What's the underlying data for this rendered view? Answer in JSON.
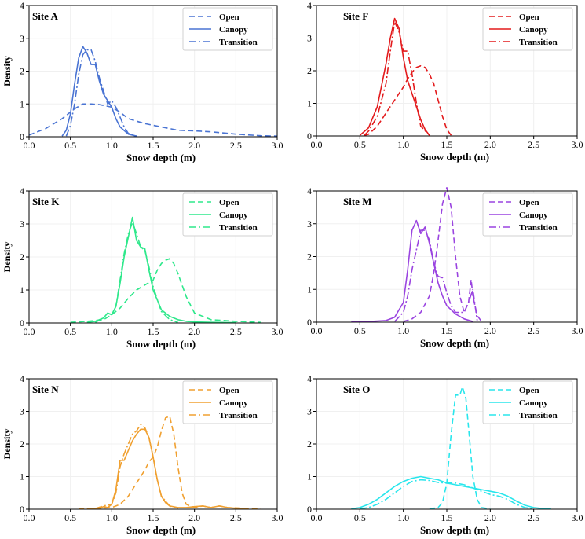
{
  "chart_data": [
    {
      "type": "line",
      "title": "Site A",
      "xlabel": "Snow depth (m)",
      "ylabel": "Density",
      "xlim": [
        0,
        3
      ],
      "ylim": [
        0,
        4
      ],
      "xticks": [
        "0.0",
        "0.5",
        "1.0",
        "1.5",
        "2.0",
        "2.5",
        "3.0"
      ],
      "yticks": [
        "0",
        "1",
        "2",
        "3",
        "4"
      ],
      "legend_position": "top-right",
      "color": "#4a74d3",
      "series": [
        {
          "name": "Open",
          "style": "dashed",
          "x": [
            0.0,
            0.2,
            0.4,
            0.55,
            0.65,
            0.75,
            0.85,
            1.0,
            1.1,
            1.2,
            1.4,
            1.6,
            1.8,
            2.0,
            2.2,
            2.5,
            2.8,
            3.0
          ],
          "y": [
            0.05,
            0.25,
            0.55,
            0.85,
            1.0,
            1.0,
            0.98,
            0.9,
            0.75,
            0.55,
            0.4,
            0.3,
            0.2,
            0.18,
            0.15,
            0.08,
            0.03,
            0.02
          ]
        },
        {
          "name": "Canopy",
          "style": "solid",
          "x": [
            0.4,
            0.45,
            0.5,
            0.55,
            0.6,
            0.65,
            0.7,
            0.75,
            0.8,
            0.85,
            0.9,
            0.95,
            1.0,
            1.05,
            1.1,
            1.2,
            1.3
          ],
          "y": [
            0.02,
            0.2,
            0.7,
            1.6,
            2.4,
            2.75,
            2.55,
            2.2,
            2.2,
            1.7,
            1.3,
            1.1,
            0.9,
            0.55,
            0.3,
            0.08,
            0.02
          ]
        },
        {
          "name": "Transition",
          "style": "dashdot",
          "x": [
            0.45,
            0.5,
            0.55,
            0.6,
            0.65,
            0.7,
            0.75,
            0.8,
            0.85,
            0.9,
            0.95,
            1.0,
            1.05,
            1.1,
            1.15,
            1.2,
            1.3
          ],
          "y": [
            0.02,
            0.35,
            1.0,
            1.9,
            2.5,
            2.65,
            2.65,
            2.3,
            1.8,
            1.4,
            1.0,
            1.1,
            0.9,
            0.6,
            0.3,
            0.1,
            0.02
          ]
        }
      ]
    },
    {
      "type": "line",
      "title": "Site F",
      "xlabel": "Snow depth (m)",
      "ylabel": "",
      "xlim": [
        0,
        3
      ],
      "ylim": [
        0,
        4
      ],
      "xticks": [
        "0.0",
        "0.5",
        "1.0",
        "1.5",
        "2.0",
        "2.5",
        "3.0"
      ],
      "yticks": [
        "0",
        "1",
        "2",
        "3",
        "4"
      ],
      "legend_position": "top-right",
      "color": "#e31a1c",
      "series": [
        {
          "name": "Open",
          "style": "dashed",
          "x": [
            0.55,
            0.6,
            0.7,
            0.8,
            0.9,
            1.0,
            1.05,
            1.1,
            1.15,
            1.2,
            1.25,
            1.3,
            1.35,
            1.4,
            1.45,
            1.5,
            1.55
          ],
          "y": [
            0.02,
            0.05,
            0.3,
            0.7,
            1.1,
            1.5,
            1.75,
            1.95,
            2.1,
            2.15,
            2.1,
            1.9,
            1.6,
            1.1,
            0.6,
            0.2,
            0.02
          ]
        },
        {
          "name": "Canopy",
          "style": "solid",
          "x": [
            0.5,
            0.6,
            0.7,
            0.8,
            0.85,
            0.9,
            0.95,
            1.0,
            1.05,
            1.1,
            1.15,
            1.2,
            1.25,
            1.3
          ],
          "y": [
            0.02,
            0.25,
            0.9,
            2.2,
            3.0,
            3.6,
            3.3,
            2.4,
            1.7,
            1.3,
            0.9,
            0.5,
            0.2,
            0.02
          ]
        },
        {
          "name": "Transition",
          "style": "dashdot",
          "x": [
            0.55,
            0.6,
            0.7,
            0.8,
            0.85,
            0.9,
            0.95,
            1.0,
            1.05,
            1.1,
            1.15,
            1.2,
            1.3
          ],
          "y": [
            0.02,
            0.15,
            0.6,
            1.6,
            2.6,
            3.5,
            3.2,
            2.6,
            2.6,
            1.9,
            1.0,
            0.3,
            0.02
          ]
        }
      ]
    },
    {
      "type": "line",
      "title": "Site K",
      "xlabel": "Snow depth (m)",
      "ylabel": "Density",
      "xlim": [
        0,
        3
      ],
      "ylim": [
        0,
        4
      ],
      "xticks": [
        "0.0",
        "0.5",
        "1.0",
        "1.5",
        "2.0",
        "2.5",
        "3.0"
      ],
      "yticks": [
        "0",
        "1",
        "2",
        "3",
        "4"
      ],
      "legend_position": "top-right",
      "color": "#2ee88b",
      "series": [
        {
          "name": "Open",
          "style": "dashed",
          "x": [
            0.5,
            0.7,
            0.9,
            1.0,
            1.1,
            1.2,
            1.3,
            1.4,
            1.5,
            1.55,
            1.6,
            1.65,
            1.7,
            1.75,
            1.8,
            1.9,
            2.0,
            2.2,
            2.5,
            2.8
          ],
          "y": [
            0.02,
            0.05,
            0.1,
            0.25,
            0.45,
            0.75,
            1.0,
            1.15,
            1.3,
            1.6,
            1.8,
            1.9,
            1.95,
            1.8,
            1.5,
            0.8,
            0.3,
            0.1,
            0.05,
            0.02
          ]
        },
        {
          "name": "Canopy",
          "style": "solid",
          "x": [
            0.7,
            0.8,
            0.9,
            0.95,
            1.0,
            1.05,
            1.1,
            1.15,
            1.2,
            1.25,
            1.3,
            1.35,
            1.4,
            1.45,
            1.5,
            1.6,
            1.7,
            1.8,
            1.9,
            2.0,
            2.2,
            2.5
          ],
          "y": [
            0.02,
            0.05,
            0.15,
            0.3,
            0.25,
            0.5,
            1.2,
            2.0,
            2.6,
            3.2,
            2.5,
            2.3,
            2.25,
            1.6,
            1.0,
            0.4,
            0.2,
            0.1,
            0.05,
            0.03,
            0.02,
            0.01
          ]
        },
        {
          "name": "Transition",
          "style": "dashdot",
          "x": [
            0.8,
            0.9,
            0.95,
            1.0,
            1.05,
            1.1,
            1.15,
            1.2,
            1.25,
            1.3,
            1.35,
            1.4,
            1.45,
            1.5,
            1.6,
            1.7,
            1.8
          ],
          "y": [
            0.02,
            0.15,
            0.3,
            0.25,
            0.5,
            1.3,
            2.1,
            2.7,
            3.05,
            2.7,
            2.3,
            2.2,
            1.7,
            1.1,
            0.35,
            0.1,
            0.02
          ]
        }
      ]
    },
    {
      "type": "line",
      "title": "Site M",
      "xlabel": "Snow depth (m)",
      "ylabel": "",
      "xlim": [
        0,
        3
      ],
      "ylim": [
        0,
        4
      ],
      "xticks": [
        "0.0",
        "0.5",
        "1.0",
        "1.5",
        "2.0",
        "2.5",
        "3.0"
      ],
      "yticks": [
        "0",
        "1",
        "2",
        "3",
        "4"
      ],
      "legend_position": "top-right",
      "color": "#9a44e0",
      "series": [
        {
          "name": "Open",
          "style": "dashed",
          "x": [
            1.0,
            1.1,
            1.2,
            1.3,
            1.35,
            1.4,
            1.45,
            1.5,
            1.55,
            1.6,
            1.65,
            1.7,
            1.75,
            1.78,
            1.8,
            1.85,
            1.9
          ],
          "y": [
            0.02,
            0.1,
            0.3,
            0.8,
            1.5,
            2.5,
            3.6,
            4.1,
            3.5,
            2.0,
            0.8,
            0.3,
            0.6,
            1.3,
            0.8,
            0.2,
            0.02
          ]
        },
        {
          "name": "Canopy",
          "style": "solid",
          "x": [
            0.4,
            0.6,
            0.8,
            0.9,
            1.0,
            1.05,
            1.1,
            1.15,
            1.2,
            1.25,
            1.3,
            1.35,
            1.4,
            1.45,
            1.5,
            1.6,
            1.7,
            1.8
          ],
          "y": [
            0.01,
            0.02,
            0.05,
            0.15,
            0.6,
            1.6,
            2.8,
            3.1,
            2.7,
            2.9,
            2.4,
            1.8,
            1.2,
            0.8,
            0.5,
            0.25,
            0.1,
            0.02
          ]
        },
        {
          "name": "Transition",
          "style": "dashdot",
          "x": [
            0.9,
            1.0,
            1.05,
            1.1,
            1.15,
            1.2,
            1.25,
            1.3,
            1.35,
            1.4,
            1.45,
            1.5,
            1.55,
            1.6,
            1.7,
            1.75,
            1.8,
            1.85
          ],
          "y": [
            0.02,
            0.3,
            0.8,
            1.6,
            2.2,
            2.8,
            2.8,
            2.5,
            1.8,
            1.4,
            1.35,
            0.9,
            0.5,
            0.3,
            0.3,
            0.6,
            1.0,
            0.05
          ]
        }
      ]
    },
    {
      "type": "line",
      "title": "Site N",
      "xlabel": "Snow depth (m)",
      "ylabel": "Density",
      "xlim": [
        0,
        3
      ],
      "ylim": [
        0,
        4
      ],
      "xticks": [
        "0.0",
        "0.5",
        "1.0",
        "1.5",
        "2.0",
        "2.5",
        "3.0"
      ],
      "yticks": [
        "0",
        "1",
        "2",
        "3",
        "4"
      ],
      "legend_position": "top-right",
      "color": "#f0a030",
      "series": [
        {
          "name": "Open",
          "style": "dashed",
          "x": [
            0.6,
            0.8,
            1.0,
            1.1,
            1.2,
            1.3,
            1.4,
            1.45,
            1.5,
            1.55,
            1.6,
            1.65,
            1.7,
            1.75,
            1.8,
            1.85,
            1.9,
            2.0,
            2.1,
            2.2,
            2.3,
            2.4,
            2.6,
            2.8
          ],
          "y": [
            0.01,
            0.02,
            0.05,
            0.15,
            0.4,
            0.8,
            1.2,
            1.45,
            1.6,
            1.9,
            2.4,
            2.8,
            2.85,
            2.3,
            1.3,
            0.5,
            0.15,
            0.05,
            0.1,
            0.05,
            0.1,
            0.05,
            0.03,
            0.01
          ]
        },
        {
          "name": "Canopy",
          "style": "solid",
          "x": [
            0.7,
            0.85,
            0.9,
            0.95,
            1.0,
            1.05,
            1.1,
            1.15,
            1.2,
            1.25,
            1.3,
            1.35,
            1.4,
            1.45,
            1.5,
            1.55,
            1.6,
            1.65,
            1.7,
            1.8,
            1.9,
            2.0,
            2.1,
            2.2,
            2.3,
            2.4,
            2.6
          ],
          "y": [
            0.01,
            0.03,
            0.08,
            0.05,
            0.15,
            0.6,
            1.5,
            1.5,
            1.8,
            2.1,
            2.3,
            2.45,
            2.45,
            2.2,
            1.6,
            0.9,
            0.4,
            0.2,
            0.1,
            0.05,
            0.05,
            0.08,
            0.1,
            0.05,
            0.1,
            0.05,
            0.01
          ]
        },
        {
          "name": "Transition",
          "style": "dashdot",
          "x": [
            0.8,
            0.9,
            1.0,
            1.05,
            1.1,
            1.15,
            1.2,
            1.25,
            1.3,
            1.35,
            1.4,
            1.45,
            1.5,
            1.55,
            1.6,
            1.7,
            1.8
          ],
          "y": [
            0.02,
            0.1,
            0.15,
            0.5,
            1.3,
            1.7,
            2.0,
            2.3,
            2.4,
            2.6,
            2.5,
            2.2,
            1.6,
            0.9,
            0.4,
            0.1,
            0.02
          ]
        }
      ]
    },
    {
      "type": "line",
      "title": "Site O",
      "xlabel": "Snow depth (m)",
      "ylabel": "",
      "xlim": [
        0,
        3
      ],
      "ylim": [
        0,
        4
      ],
      "xticks": [
        "0.0",
        "0.5",
        "1.0",
        "1.5",
        "2.0",
        "2.5",
        "3.0"
      ],
      "yticks": [
        "0",
        "1",
        "2",
        "3",
        "4"
      ],
      "legend_position": "top-right",
      "color": "#28e6ec",
      "series": [
        {
          "name": "Open",
          "style": "dashed",
          "x": [
            1.3,
            1.4,
            1.45,
            1.5,
            1.55,
            1.6,
            1.65,
            1.68,
            1.72,
            1.75,
            1.8,
            1.85,
            1.9,
            2.0
          ],
          "y": [
            0.01,
            0.05,
            0.2,
            0.8,
            2.3,
            3.5,
            3.5,
            3.75,
            3.4,
            2.5,
            1.0,
            0.3,
            0.05,
            0.01
          ]
        },
        {
          "name": "Canopy",
          "style": "solid",
          "x": [
            0.4,
            0.5,
            0.6,
            0.7,
            0.8,
            0.9,
            1.0,
            1.1,
            1.2,
            1.3,
            1.4,
            1.5,
            1.6,
            1.7,
            1.8,
            1.9,
            2.0,
            2.1,
            2.2,
            2.3,
            2.4,
            2.5,
            2.6,
            2.7
          ],
          "y": [
            0.01,
            0.05,
            0.15,
            0.3,
            0.5,
            0.7,
            0.85,
            0.95,
            1.0,
            0.95,
            0.9,
            0.8,
            0.75,
            0.7,
            0.65,
            0.6,
            0.55,
            0.5,
            0.4,
            0.25,
            0.12,
            0.05,
            0.02,
            0.01
          ]
        },
        {
          "name": "Transition",
          "style": "dashdot",
          "x": [
            0.5,
            0.6,
            0.7,
            0.8,
            0.9,
            1.0,
            1.1,
            1.2,
            1.3,
            1.4,
            1.5,
            1.6,
            1.7,
            1.8,
            1.9,
            2.0,
            2.1,
            2.2,
            2.3,
            2.4,
            2.5
          ],
          "y": [
            0.01,
            0.05,
            0.15,
            0.3,
            0.5,
            0.7,
            0.85,
            0.9,
            0.88,
            0.82,
            0.8,
            0.8,
            0.75,
            0.65,
            0.55,
            0.45,
            0.4,
            0.3,
            0.15,
            0.05,
            0.01
          ]
        }
      ]
    }
  ]
}
